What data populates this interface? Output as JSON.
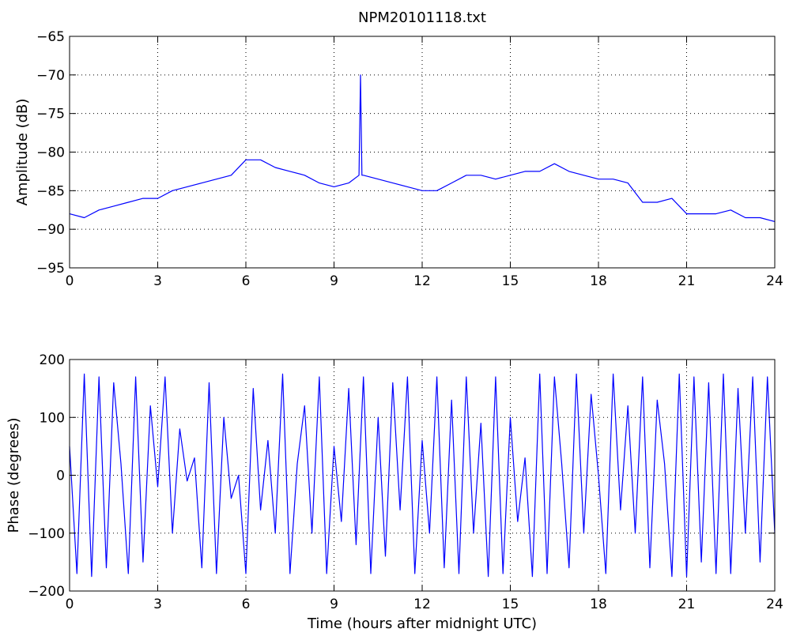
{
  "chart_data": [
    {
      "type": "line",
      "title": "NPM20101118.txt",
      "xlabel": "",
      "ylabel": "Amplitude (dB)",
      "xlim": [
        0,
        24
      ],
      "ylim": [
        -95,
        -65
      ],
      "xticks": [
        0,
        3,
        6,
        9,
        12,
        15,
        18,
        21,
        24
      ],
      "yticks": [
        -95,
        -90,
        -85,
        -80,
        -75,
        -70,
        -65
      ],
      "grid": true,
      "line_color": "#0000ff",
      "series": [
        {
          "x": [
            0,
            0.5,
            1,
            1.5,
            2,
            2.5,
            3,
            3.5,
            4,
            4.5,
            5,
            5.5,
            6,
            6.5,
            7,
            7.5,
            8,
            8.5,
            9,
            9.5,
            9.85,
            9.9,
            9.95,
            10,
            10.5,
            11,
            11.5,
            12,
            12.5,
            13,
            13.5,
            14,
            14.5,
            15,
            15.5,
            16,
            16.5,
            17,
            17.5,
            18,
            18.5,
            19,
            19.5,
            20,
            20.5,
            21,
            21.5,
            22,
            22.5,
            23,
            23.5,
            24
          ],
          "values": [
            -88,
            -88.5,
            -87.5,
            -87,
            -86.5,
            -86,
            -86,
            -85,
            -84.5,
            -84,
            -83.5,
            -83,
            -81,
            -81,
            -82,
            -82.5,
            -83,
            -84,
            -84.5,
            -84,
            -83,
            -70,
            -83,
            -83,
            -83.5,
            -84,
            -84.5,
            -85,
            -85,
            -84,
            -83,
            -83,
            -83.5,
            -83,
            -82.5,
            -82.5,
            -81.5,
            -82.5,
            -83,
            -83.5,
            -83.5,
            -84,
            -86.5,
            -86.5,
            -86,
            -88,
            -88,
            -88,
            -87.5,
            -88.5,
            -88.5,
            -89
          ]
        }
      ]
    },
    {
      "type": "line",
      "title": "",
      "xlabel": "Time (hours after midnight UTC)",
      "ylabel": "Phase (degrees)",
      "xlim": [
        0,
        24
      ],
      "ylim": [
        -200,
        200
      ],
      "xticks": [
        0,
        3,
        6,
        9,
        12,
        15,
        18,
        21,
        24
      ],
      "yticks": [
        -200,
        -100,
        0,
        100,
        200
      ],
      "grid": true,
      "line_color": "#0000ff",
      "series": [
        {
          "x": [
            0,
            0.25,
            0.5,
            0.75,
            1,
            1.25,
            1.5,
            1.75,
            2,
            2.25,
            2.5,
            2.75,
            3,
            3.25,
            3.5,
            3.75,
            4,
            4.25,
            4.5,
            4.75,
            5,
            5.25,
            5.5,
            5.75,
            6,
            6.25,
            6.5,
            6.75,
            7,
            7.25,
            7.5,
            7.75,
            8,
            8.25,
            8.5,
            8.75,
            9,
            9.25,
            9.5,
            9.75,
            10,
            10.25,
            10.5,
            10.75,
            11,
            11.25,
            11.5,
            11.75,
            12,
            12.25,
            12.5,
            12.75,
            13,
            13.25,
            13.5,
            13.75,
            14,
            14.25,
            14.5,
            14.75,
            15,
            15.25,
            15.5,
            15.75,
            16,
            16.25,
            16.5,
            16.75,
            17,
            17.25,
            17.5,
            17.75,
            18,
            18.25,
            18.5,
            18.75,
            19,
            19.25,
            19.5,
            19.75,
            20,
            20.25,
            20.5,
            20.75,
            21,
            21.25,
            21.5,
            21.75,
            22,
            22.25,
            22.5,
            22.75,
            23,
            23.25,
            23.5,
            23.75,
            24
          ],
          "values": [
            50,
            -170,
            175,
            -175,
            170,
            -160,
            160,
            20,
            -170,
            170,
            -150,
            120,
            -20,
            170,
            -100,
            80,
            -10,
            30,
            -160,
            160,
            -170,
            100,
            -40,
            0,
            -170,
            150,
            -60,
            60,
            -100,
            175,
            -170,
            20,
            120,
            -100,
            170,
            -170,
            50,
            -80,
            150,
            -120,
            170,
            -170,
            100,
            -140,
            160,
            -60,
            170,
            -170,
            60,
            -100,
            170,
            -160,
            130,
            -170,
            170,
            -100,
            90,
            -175,
            170,
            -170,
            100,
            -80,
            30,
            -175,
            175,
            -170,
            170,
            20,
            -160,
            175,
            -100,
            140,
            0,
            -170,
            175,
            -60,
            120,
            -100,
            170,
            -160,
            130,
            20,
            -175,
            175,
            -175,
            170,
            -150,
            160,
            -170,
            175,
            -170,
            150,
            -100,
            170,
            -150,
            170,
            -100
          ]
        }
      ]
    }
  ]
}
